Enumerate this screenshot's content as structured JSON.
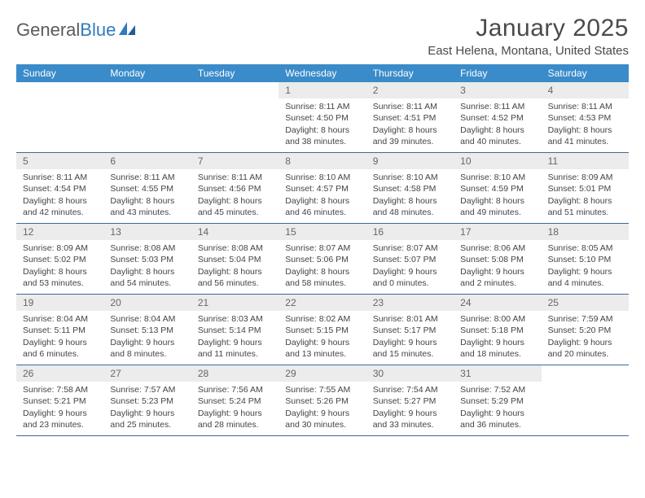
{
  "logo": {
    "word1": "General",
    "word2": "Blue"
  },
  "title": "January 2025",
  "location": "East Helena, Montana, United States",
  "colors": {
    "header_bg": "#3a8bc9",
    "header_text": "#ffffff",
    "daynum_bg": "#ececec",
    "rule": "#3a6a9a",
    "logo_gray": "#5a5a5a",
    "logo_blue": "#2f7bbf"
  },
  "dow": [
    "Sunday",
    "Monday",
    "Tuesday",
    "Wednesday",
    "Thursday",
    "Friday",
    "Saturday"
  ],
  "weeks": [
    [
      null,
      null,
      null,
      {
        "n": "1",
        "sr": "Sunrise: 8:11 AM",
        "ss": "Sunset: 4:50 PM",
        "d1": "Daylight: 8 hours",
        "d2": "and 38 minutes."
      },
      {
        "n": "2",
        "sr": "Sunrise: 8:11 AM",
        "ss": "Sunset: 4:51 PM",
        "d1": "Daylight: 8 hours",
        "d2": "and 39 minutes."
      },
      {
        "n": "3",
        "sr": "Sunrise: 8:11 AM",
        "ss": "Sunset: 4:52 PM",
        "d1": "Daylight: 8 hours",
        "d2": "and 40 minutes."
      },
      {
        "n": "4",
        "sr": "Sunrise: 8:11 AM",
        "ss": "Sunset: 4:53 PM",
        "d1": "Daylight: 8 hours",
        "d2": "and 41 minutes."
      }
    ],
    [
      {
        "n": "5",
        "sr": "Sunrise: 8:11 AM",
        "ss": "Sunset: 4:54 PM",
        "d1": "Daylight: 8 hours",
        "d2": "and 42 minutes."
      },
      {
        "n": "6",
        "sr": "Sunrise: 8:11 AM",
        "ss": "Sunset: 4:55 PM",
        "d1": "Daylight: 8 hours",
        "d2": "and 43 minutes."
      },
      {
        "n": "7",
        "sr": "Sunrise: 8:11 AM",
        "ss": "Sunset: 4:56 PM",
        "d1": "Daylight: 8 hours",
        "d2": "and 45 minutes."
      },
      {
        "n": "8",
        "sr": "Sunrise: 8:10 AM",
        "ss": "Sunset: 4:57 PM",
        "d1": "Daylight: 8 hours",
        "d2": "and 46 minutes."
      },
      {
        "n": "9",
        "sr": "Sunrise: 8:10 AM",
        "ss": "Sunset: 4:58 PM",
        "d1": "Daylight: 8 hours",
        "d2": "and 48 minutes."
      },
      {
        "n": "10",
        "sr": "Sunrise: 8:10 AM",
        "ss": "Sunset: 4:59 PM",
        "d1": "Daylight: 8 hours",
        "d2": "and 49 minutes."
      },
      {
        "n": "11",
        "sr": "Sunrise: 8:09 AM",
        "ss": "Sunset: 5:01 PM",
        "d1": "Daylight: 8 hours",
        "d2": "and 51 minutes."
      }
    ],
    [
      {
        "n": "12",
        "sr": "Sunrise: 8:09 AM",
        "ss": "Sunset: 5:02 PM",
        "d1": "Daylight: 8 hours",
        "d2": "and 53 minutes."
      },
      {
        "n": "13",
        "sr": "Sunrise: 8:08 AM",
        "ss": "Sunset: 5:03 PM",
        "d1": "Daylight: 8 hours",
        "d2": "and 54 minutes."
      },
      {
        "n": "14",
        "sr": "Sunrise: 8:08 AM",
        "ss": "Sunset: 5:04 PM",
        "d1": "Daylight: 8 hours",
        "d2": "and 56 minutes."
      },
      {
        "n": "15",
        "sr": "Sunrise: 8:07 AM",
        "ss": "Sunset: 5:06 PM",
        "d1": "Daylight: 8 hours",
        "d2": "and 58 minutes."
      },
      {
        "n": "16",
        "sr": "Sunrise: 8:07 AM",
        "ss": "Sunset: 5:07 PM",
        "d1": "Daylight: 9 hours",
        "d2": "and 0 minutes."
      },
      {
        "n": "17",
        "sr": "Sunrise: 8:06 AM",
        "ss": "Sunset: 5:08 PM",
        "d1": "Daylight: 9 hours",
        "d2": "and 2 minutes."
      },
      {
        "n": "18",
        "sr": "Sunrise: 8:05 AM",
        "ss": "Sunset: 5:10 PM",
        "d1": "Daylight: 9 hours",
        "d2": "and 4 minutes."
      }
    ],
    [
      {
        "n": "19",
        "sr": "Sunrise: 8:04 AM",
        "ss": "Sunset: 5:11 PM",
        "d1": "Daylight: 9 hours",
        "d2": "and 6 minutes."
      },
      {
        "n": "20",
        "sr": "Sunrise: 8:04 AM",
        "ss": "Sunset: 5:13 PM",
        "d1": "Daylight: 9 hours",
        "d2": "and 8 minutes."
      },
      {
        "n": "21",
        "sr": "Sunrise: 8:03 AM",
        "ss": "Sunset: 5:14 PM",
        "d1": "Daylight: 9 hours",
        "d2": "and 11 minutes."
      },
      {
        "n": "22",
        "sr": "Sunrise: 8:02 AM",
        "ss": "Sunset: 5:15 PM",
        "d1": "Daylight: 9 hours",
        "d2": "and 13 minutes."
      },
      {
        "n": "23",
        "sr": "Sunrise: 8:01 AM",
        "ss": "Sunset: 5:17 PM",
        "d1": "Daylight: 9 hours",
        "d2": "and 15 minutes."
      },
      {
        "n": "24",
        "sr": "Sunrise: 8:00 AM",
        "ss": "Sunset: 5:18 PM",
        "d1": "Daylight: 9 hours",
        "d2": "and 18 minutes."
      },
      {
        "n": "25",
        "sr": "Sunrise: 7:59 AM",
        "ss": "Sunset: 5:20 PM",
        "d1": "Daylight: 9 hours",
        "d2": "and 20 minutes."
      }
    ],
    [
      {
        "n": "26",
        "sr": "Sunrise: 7:58 AM",
        "ss": "Sunset: 5:21 PM",
        "d1": "Daylight: 9 hours",
        "d2": "and 23 minutes."
      },
      {
        "n": "27",
        "sr": "Sunrise: 7:57 AM",
        "ss": "Sunset: 5:23 PM",
        "d1": "Daylight: 9 hours",
        "d2": "and 25 minutes."
      },
      {
        "n": "28",
        "sr": "Sunrise: 7:56 AM",
        "ss": "Sunset: 5:24 PM",
        "d1": "Daylight: 9 hours",
        "d2": "and 28 minutes."
      },
      {
        "n": "29",
        "sr": "Sunrise: 7:55 AM",
        "ss": "Sunset: 5:26 PM",
        "d1": "Daylight: 9 hours",
        "d2": "and 30 minutes."
      },
      {
        "n": "30",
        "sr": "Sunrise: 7:54 AM",
        "ss": "Sunset: 5:27 PM",
        "d1": "Daylight: 9 hours",
        "d2": "and 33 minutes."
      },
      {
        "n": "31",
        "sr": "Sunrise: 7:52 AM",
        "ss": "Sunset: 5:29 PM",
        "d1": "Daylight: 9 hours",
        "d2": "and 36 minutes."
      },
      null
    ]
  ]
}
